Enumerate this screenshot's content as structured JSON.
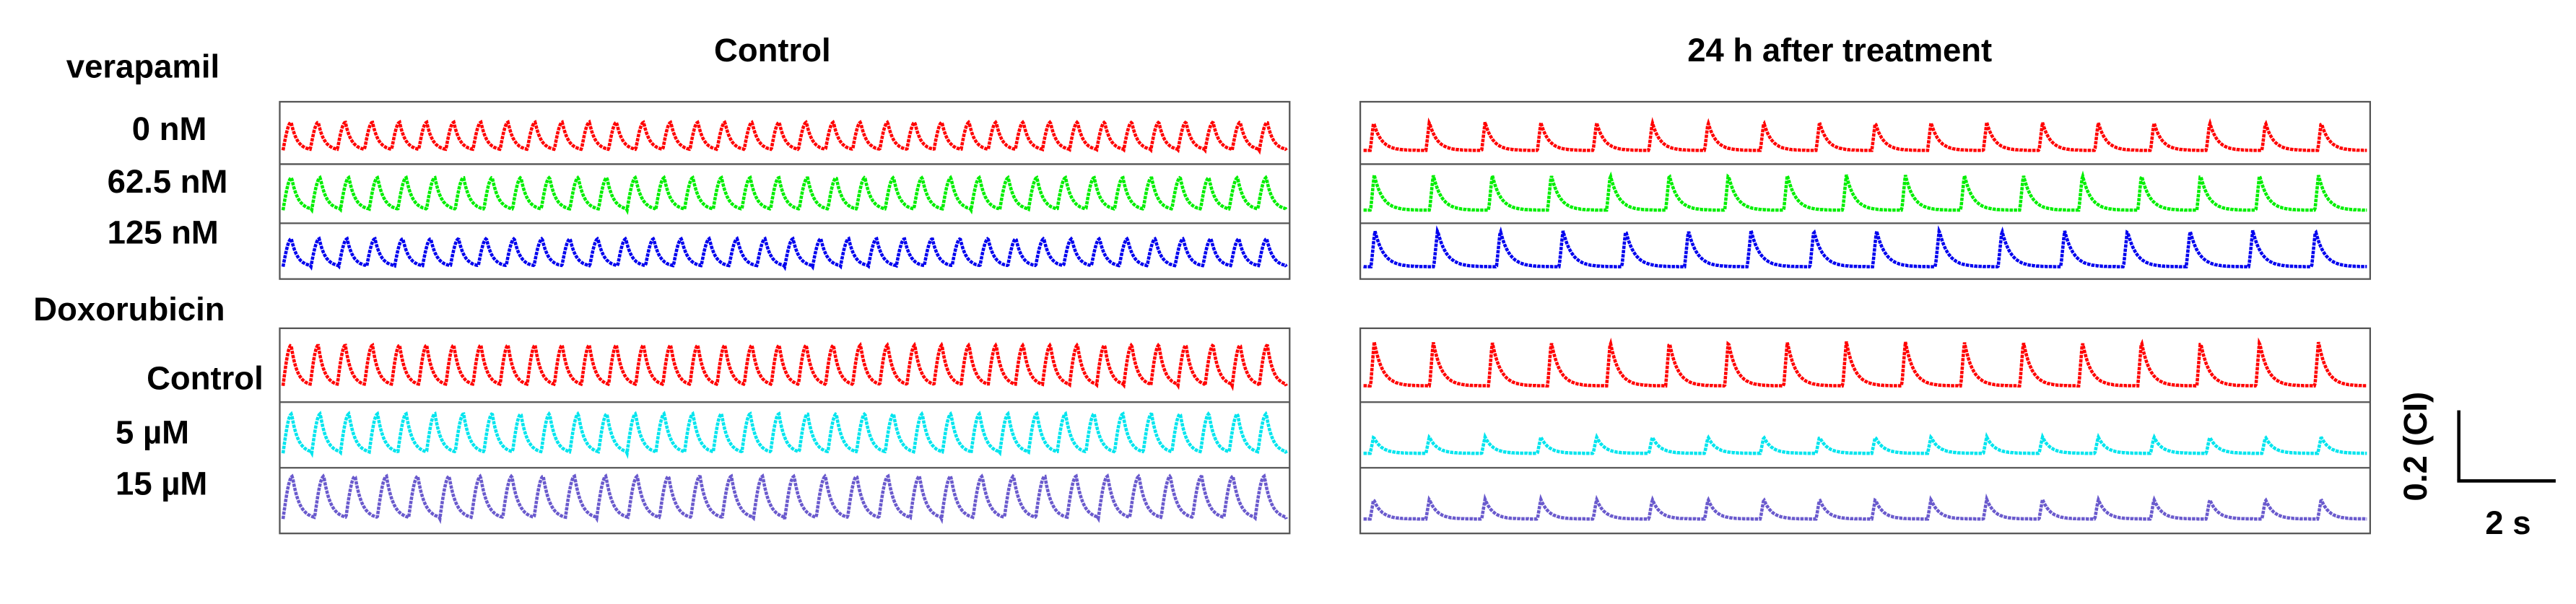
{
  "columns": [
    "Control",
    "24 h after treatment"
  ],
  "groups": [
    {
      "label": "verapamil",
      "rows": [
        {
          "label": "0 nM",
          "traces": [
            {
              "color": "#ff0000",
              "beats": 37,
              "amplitude": 0.45
            },
            {
              "color": "#ff0000",
              "beats": 18,
              "amplitude": 0.45
            }
          ]
        },
        {
          "label": "62.5 nM",
          "traces": [
            {
              "color": "#00ee00",
              "beats": 35,
              "amplitude": 0.55
            },
            {
              "color": "#00ee00",
              "beats": 17,
              "amplitude": 0.6
            }
          ]
        },
        {
          "label": "125 nM",
          "traces": [
            {
              "color": "#0000ee",
              "beats": 36,
              "amplitude": 0.5
            },
            {
              "color": "#0000ee",
              "beats": 16,
              "amplitude": 0.65
            }
          ]
        }
      ]
    },
    {
      "label": "Doxorubicin",
      "rows": [
        {
          "label": "Control",
          "traces": [
            {
              "color": "#ff0000",
              "beats": 37,
              "amplitude": 0.55
            },
            {
              "color": "#ff0000",
              "beats": 17,
              "amplitude": 0.6
            }
          ]
        },
        {
          "label": "5 µM",
          "traces": [
            {
              "color": "#00e5ee",
              "beats": 35,
              "amplitude": 0.6
            },
            {
              "color": "#00e5ee",
              "beats": 18,
              "amplitude": 0.25
            }
          ]
        },
        {
          "label": "15 µM",
          "traces": [
            {
              "color": "#6a5acd",
              "beats": 32,
              "amplitude": 0.65
            },
            {
              "color": "#6a5acd",
              "beats": 18,
              "amplitude": 0.3
            }
          ]
        }
      ]
    }
  ],
  "scale_bar": {
    "y_label": "0.2 (CI)",
    "x_label": "2 s"
  }
}
